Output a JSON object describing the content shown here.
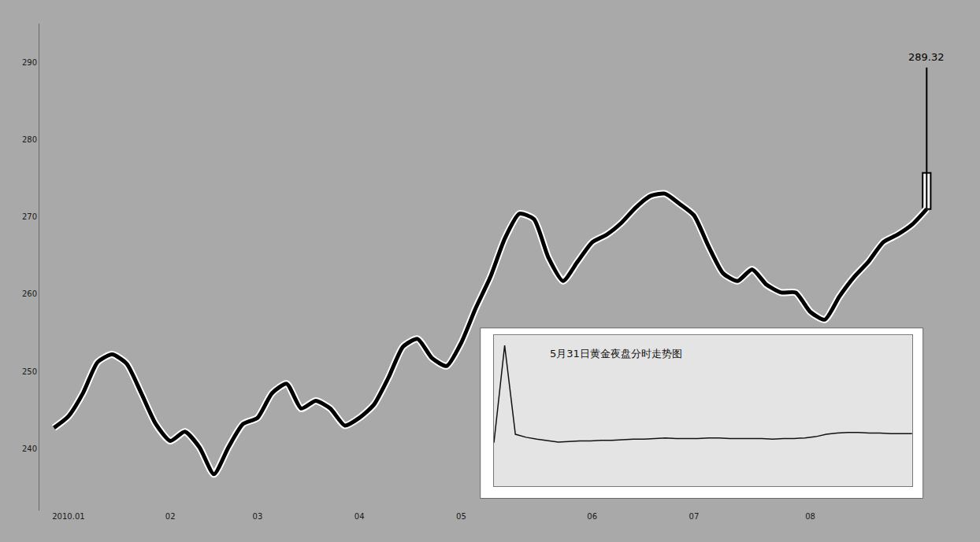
{
  "chart_data": [
    {
      "type": "line",
      "categories": [
        null,
        "2010.01",
        null,
        null,
        null,
        null,
        null,
        null,
        "02",
        null,
        null,
        null,
        null,
        null,
        "03",
        null,
        null,
        null,
        null,
        null,
        null,
        "04",
        null,
        null,
        null,
        null,
        null,
        null,
        "05",
        null,
        null,
        null,
        null,
        null,
        null,
        null,
        null,
        "06",
        null,
        null,
        null,
        null,
        null,
        null,
        "07",
        null,
        null,
        null,
        null,
        null,
        null,
        null,
        "08",
        null,
        null,
        null,
        null,
        null,
        null,
        null,
        null
      ],
      "values": [
        242.7,
        244.2,
        247.2,
        251.2,
        252.2,
        251.0,
        247.2,
        243.2,
        241.0,
        242.2,
        240.2,
        236.7,
        240.2,
        243.2,
        244.0,
        247.2,
        248.4,
        245.2,
        246.2,
        245.2,
        243.0,
        244.0,
        245.7,
        249.2,
        253.2,
        254.2,
        251.7,
        250.7,
        253.7,
        258.2,
        262.2,
        267.2,
        270.4,
        269.7,
        264.7,
        261.7,
        264.2,
        266.7,
        267.7,
        269.2,
        271.2,
        272.7,
        273.0,
        271.7,
        270.2,
        266.2,
        262.7,
        261.7,
        263.2,
        261.2,
        260.2,
        260.2,
        257.7,
        256.7,
        259.7,
        262.2,
        264.2,
        266.7,
        267.7,
        269.0,
        271.0
      ],
      "color": "#000000",
      "candle": {
        "open": 271.0,
        "high": 289.32,
        "low": 271.0,
        "close": 275.7
      },
      "ylim": [
        232,
        295
      ],
      "yticks": [
        240,
        250,
        260,
        270,
        280,
        290
      ],
      "grid": false
    },
    {
      "type": "line",
      "title": "5月31日黄金夜盘分时走势图",
      "x": [
        0,
        10,
        20,
        30,
        40,
        50,
        60,
        70,
        80,
        90,
        100,
        110,
        120,
        130,
        140,
        150,
        160,
        170,
        180,
        190,
        200,
        210,
        220,
        230,
        240,
        250,
        260,
        270,
        280,
        290,
        300,
        310,
        320,
        330,
        340,
        350,
        360,
        370,
        380,
        390
      ],
      "values": [
        273.2,
        289.32,
        274.6,
        274.1,
        273.8,
        273.5,
        273.3,
        273.4,
        273.5,
        273.5,
        273.6,
        273.6,
        273.7,
        273.8,
        273.8,
        273.9,
        274.0,
        273.9,
        273.9,
        273.9,
        274.0,
        274.0,
        273.9,
        273.9,
        273.9,
        273.9,
        273.8,
        273.9,
        273.9,
        274.0,
        274.2,
        274.6,
        274.8,
        274.9,
        274.9,
        274.8,
        274.8,
        274.7,
        274.7,
        274.7
      ],
      "color": "#111111",
      "xlim": [
        0,
        390
      ],
      "ylim": [
        266,
        291
      ],
      "tick_labels": false,
      "grid": false
    }
  ]
}
